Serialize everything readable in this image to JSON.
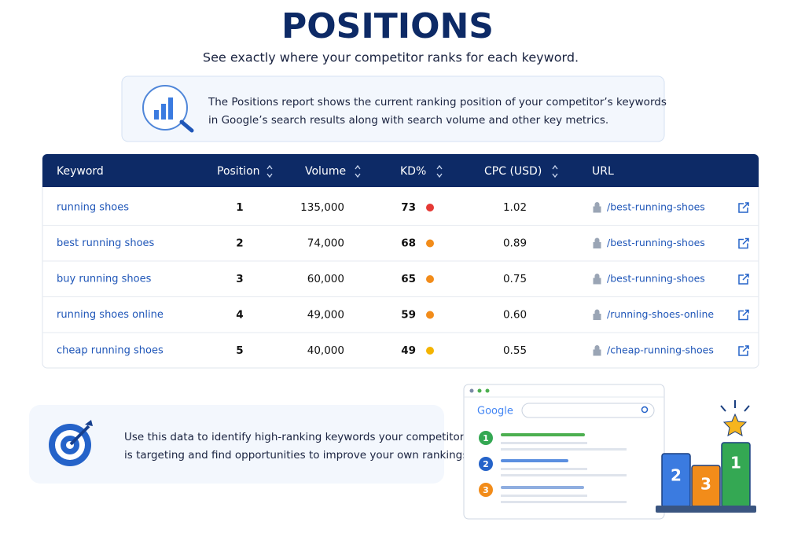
{
  "header": {
    "title": "POSITIONS",
    "subtitle": "See exactly where your competitor ranks for each keyword."
  },
  "intro": {
    "lines": [
      "The Positions report shows the current ranking position of your competitor’s keywords",
      "in Google’s search results along with search volume and other key metrics."
    ]
  },
  "table": {
    "columns": [
      "Keyword",
      "Position",
      "Volume",
      "KD%",
      "CPC (USD)",
      "URL"
    ],
    "rows": [
      {
        "keyword": "running shoes",
        "position": "1",
        "volume": "135,000",
        "kd": "73",
        "kd_color": "#e53935",
        "cpc": "1.02",
        "url": "/best-running-shoes"
      },
      {
        "keyword": "best running shoes",
        "position": "2",
        "volume": "74,000",
        "kd": "68",
        "kd_color": "#f28c1a",
        "cpc": "0.89",
        "url": "/best-running-shoes"
      },
      {
        "keyword": "buy running shoes",
        "position": "3",
        "volume": "60,000",
        "kd": "65",
        "kd_color": "#f28c1a",
        "cpc": "0.75",
        "url": "/best-running-shoes"
      },
      {
        "keyword": "running shoes online",
        "position": "4",
        "volume": "49,000",
        "kd": "59",
        "kd_color": "#f28c1a",
        "cpc": "0.60",
        "url": "/running-shoes-online"
      },
      {
        "keyword": "cheap running shoes",
        "position": "5",
        "volume": "40,000",
        "kd": "49",
        "kd_color": "#f4b400",
        "cpc": "0.55",
        "url": "/cheap-running-shoes"
      }
    ]
  },
  "footer": {
    "lines": [
      "Use this data to identify high-ranking keywords your competitor",
      "is targeting and find opportunities to improve your own rankings."
    ]
  },
  "illustration": {
    "brand": "Google",
    "results": [
      "1",
      "2",
      "3"
    ],
    "podium": [
      "2",
      "3",
      "1"
    ]
  }
}
